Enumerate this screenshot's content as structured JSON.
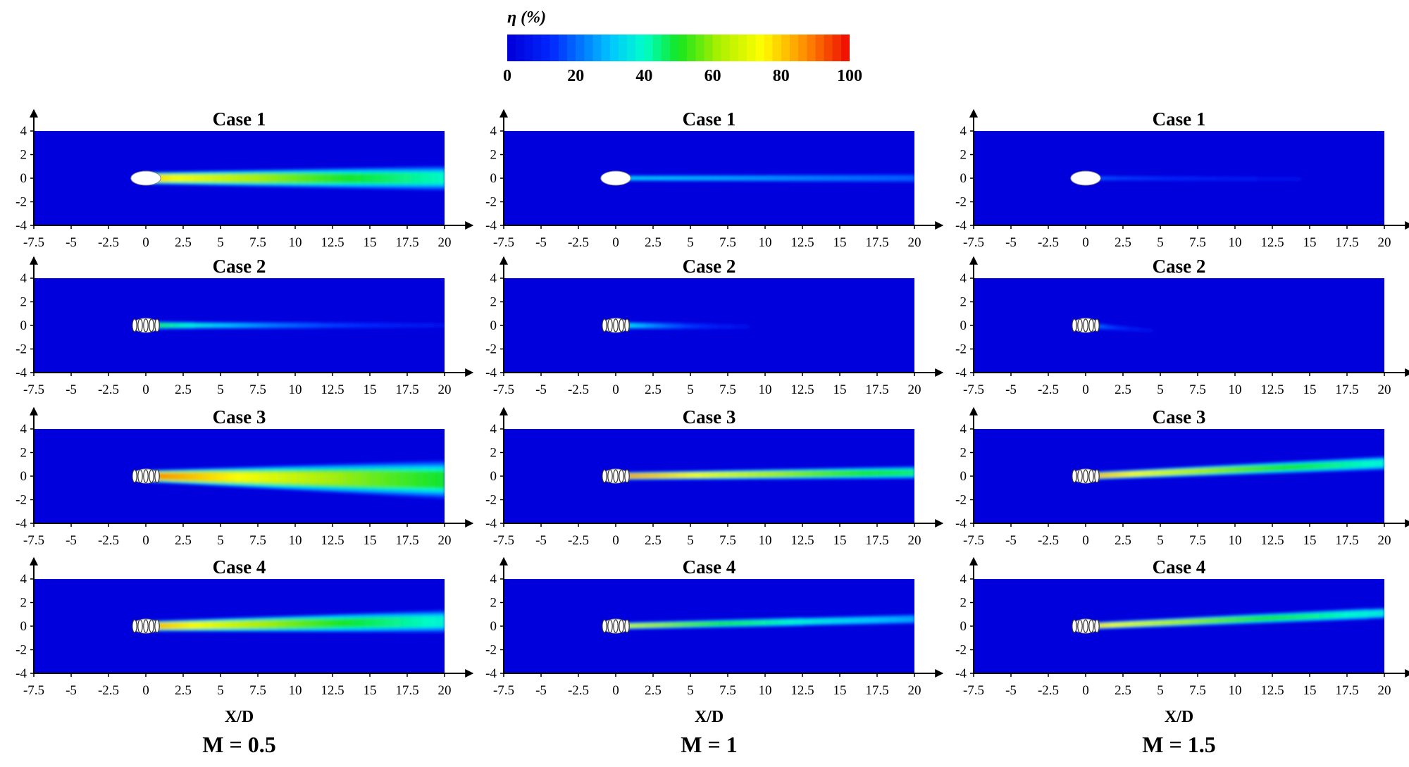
{
  "colorbar": {
    "label": "η (%)",
    "min": 0,
    "max": 100,
    "ticks": [
      "0",
      "20",
      "40",
      "60",
      "80",
      "100"
    ],
    "colormap": "jet"
  },
  "columns": [
    {
      "title": "M = 0.5",
      "xlabel": "X/D"
    },
    {
      "title": "M = 1",
      "xlabel": "X/D"
    },
    {
      "title": "M = 1.5",
      "xlabel": "X/D"
    }
  ],
  "rows": [
    {
      "title": "Case 1"
    },
    {
      "title": "Case 2"
    },
    {
      "title": "Case 3"
    },
    {
      "title": "Case 4"
    }
  ],
  "axes": {
    "x_ticks": [
      "-7.5",
      "-5",
      "-2.5",
      "0",
      "2.5",
      "5",
      "7.5",
      "10",
      "12.5",
      "15",
      "17.5",
      "20"
    ],
    "y_ticks": [
      "4",
      "2",
      "0",
      "-2",
      "-4"
    ],
    "xlim": [
      -7.5,
      20
    ],
    "ylim": [
      -4,
      4
    ]
  },
  "chart_data": {
    "type": "heatmap",
    "title": "",
    "xlabel": "X/D",
    "ylabel": "",
    "xlim": [
      -7.5,
      20
    ],
    "ylim": [
      -4,
      4
    ],
    "value_label": "η (%)",
    "value_range": [
      0,
      100
    ],
    "background_value": 0,
    "panels": [
      {
        "row": "Case 1",
        "column": "M = 0.5",
        "hole": "single",
        "peak": 85,
        "decay": 0.035,
        "base_width": 0.35,
        "spread": 0.02,
        "drift": 0.0,
        "end_y": 0.0,
        "extent": 20
      },
      {
        "row": "Case 1",
        "column": "M = 1",
        "hole": "single",
        "peak": 35,
        "decay": 0.03,
        "base_width": 0.18,
        "spread": 0.005,
        "drift": 0.0,
        "end_y": 0.0,
        "extent": 20
      },
      {
        "row": "Case 1",
        "column": "M = 1.5",
        "hole": "single",
        "peak": 20,
        "decay": 0.08,
        "base_width": 0.15,
        "spread": 0.004,
        "drift": 0.0,
        "end_y": -0.1,
        "extent": 20
      },
      {
        "row": "Case 2",
        "column": "M = 0.5",
        "hole": "shaped",
        "peak": 55,
        "decay": 0.1,
        "base_width": 0.22,
        "spread": 0.0,
        "drift": 0.0,
        "end_y": 0.0,
        "extent": 20
      },
      {
        "row": "Case 2",
        "column": "M = 1",
        "hole": "shaped",
        "peak": 45,
        "decay": 0.22,
        "base_width": 0.22,
        "spread": 0.0,
        "drift": 0.0,
        "end_y": -0.2,
        "extent": 15
      },
      {
        "row": "Case 2",
        "column": "M = 1.5",
        "hole": "shaped",
        "peak": 30,
        "decay": 0.35,
        "base_width": 0.18,
        "spread": 0.0,
        "drift": 0.0,
        "end_y": -0.5,
        "extent": 5
      },
      {
        "row": "Case 3",
        "column": "M = 0.5",
        "hole": "shaped",
        "peak": 95,
        "decay": 0.03,
        "base_width": 0.35,
        "spread": 0.04,
        "drift": 0.0,
        "end_y": -0.3,
        "extent": 20
      },
      {
        "row": "Case 3",
        "column": "M = 1",
        "hole": "shaped",
        "peak": 95,
        "decay": 0.035,
        "base_width": 0.22,
        "spread": 0.008,
        "drift": 0.0,
        "end_y": 0.3,
        "extent": 20
      },
      {
        "row": "Case 3",
        "column": "M = 1.5",
        "hole": "shaped",
        "peak": 90,
        "decay": 0.04,
        "base_width": 0.22,
        "spread": 0.01,
        "drift": 0.0,
        "end_y": 1.1,
        "extent": 20
      },
      {
        "row": "Case 4",
        "column": "M = 0.5",
        "hole": "shaped",
        "peak": 90,
        "decay": 0.04,
        "base_width": 0.3,
        "spread": 0.02,
        "drift": 0.0,
        "end_y": 0.4,
        "extent": 20
      },
      {
        "row": "Case 4",
        "column": "M = 1",
        "hole": "shaped",
        "peak": 75,
        "decay": 0.05,
        "base_width": 0.2,
        "spread": 0.006,
        "drift": 0.0,
        "end_y": 0.6,
        "extent": 20
      },
      {
        "row": "Case 4",
        "column": "M = 1.5",
        "hole": "shaped",
        "peak": 85,
        "decay": 0.04,
        "base_width": 0.2,
        "spread": 0.008,
        "drift": 0.0,
        "end_y": 1.1,
        "extent": 20
      }
    ]
  }
}
